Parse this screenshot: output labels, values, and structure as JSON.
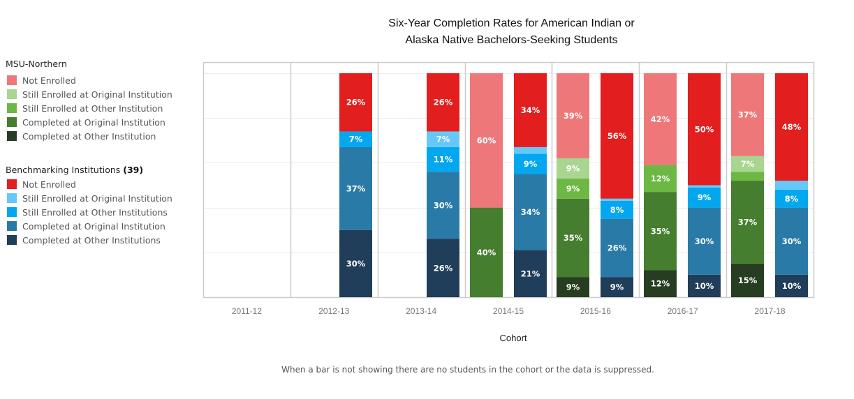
{
  "title_line1": "Six-Year Completion Rates for American Indian or",
  "title_line2": "Alaska Native Bachelors-Seeking Students",
  "legend_msu": {
    "title": "MSU-Northern",
    "items": [
      {
        "label": "Not Enrolled",
        "color": "#ee7879"
      },
      {
        "label": "Still Enrolled at Original Institution",
        "color": "#a8d590"
      },
      {
        "label": "Still Enrolled at Other Institution",
        "color": "#6db844"
      },
      {
        "label": "Completed at Original Institution",
        "color": "#457e2e"
      },
      {
        "label": "Completed at Other Institution",
        "color": "#273d22"
      }
    ]
  },
  "legend_bench": {
    "title": "Benchmarking Institutions",
    "count": "(39)",
    "items": [
      {
        "label": "Not Enrolled",
        "color": "#e21e1e"
      },
      {
        "label": "Still Enrolled at Original Institution",
        "color": "#66c8f8"
      },
      {
        "label": "Still Enrolled at Other Institutions",
        "color": "#03a7ef"
      },
      {
        "label": "Completed at Original Institution",
        "color": "#2a7aa7"
      },
      {
        "label": "Completed at Other Institutions",
        "color": "#203d5a"
      }
    ]
  },
  "xlabel": "Cohort",
  "footnote": "When a bar is not showing there are no students in the cohort or the data is suppressed.",
  "chart_data": {
    "type": "bar",
    "stacked": true,
    "title": "Six-Year Completion Rates for American Indian or Alaska Native Bachelors-Seeking Students",
    "xlabel": "Cohort",
    "ylabel": "",
    "ylim": [
      0,
      100
    ],
    "grid": true,
    "legend_position": "left",
    "categories": [
      "2011-12",
      "2012-13",
      "2013-14",
      "2014-15",
      "2015-16",
      "2016-17",
      "2017-18"
    ],
    "stack_order_bottom_to_top": [
      "Completed at Other",
      "Completed at Original",
      "Still Enrolled at Other",
      "Still Enrolled at Original",
      "Not Enrolled"
    ],
    "groups": [
      {
        "name": "MSU-Northern",
        "series": [
          {
            "name": "Completed at Other Institution",
            "color": "#273d22",
            "values": [
              null,
              null,
              null,
              0,
              9,
              12,
              15
            ]
          },
          {
            "name": "Completed at Original Institution",
            "color": "#457e2e",
            "values": [
              null,
              null,
              null,
              40,
              35,
              35,
              37
            ]
          },
          {
            "name": "Still Enrolled at Other Institution",
            "color": "#6db844",
            "values": [
              null,
              null,
              null,
              0,
              9,
              12,
              4
            ]
          },
          {
            "name": "Still Enrolled at Original Institution",
            "color": "#a8d590",
            "values": [
              null,
              null,
              null,
              0,
              9,
              0,
              7
            ]
          },
          {
            "name": "Not Enrolled",
            "color": "#ee7879",
            "values": [
              null,
              null,
              null,
              60,
              39,
              42,
              37
            ]
          }
        ],
        "labels": [
          [
            null,
            null,
            null,
            null,
            null
          ],
          [
            null,
            null,
            null,
            null,
            null
          ],
          [
            null,
            null,
            null,
            null,
            null
          ],
          [
            "",
            "40%",
            "",
            "",
            "60%"
          ],
          [
            "9%",
            "35%",
            "9%",
            "9%",
            "39%"
          ],
          [
            "12%",
            "35%",
            "12%",
            "",
            "42%"
          ],
          [
            "15%",
            "37%",
            "",
            "7%",
            "37%"
          ]
        ]
      },
      {
        "name": "Benchmarking Institutions",
        "series": [
          {
            "name": "Completed at Other Institutions",
            "color": "#203d5a",
            "values": [
              null,
              30,
              26,
              21,
              9,
              10,
              10
            ]
          },
          {
            "name": "Completed at Original Institution",
            "color": "#2a7aa7",
            "values": [
              null,
              37,
              30,
              34,
              26,
              30,
              30
            ]
          },
          {
            "name": "Still Enrolled at Other Institutions",
            "color": "#03a7ef",
            "values": [
              null,
              7,
              11,
              9,
              8,
              9,
              8
            ]
          },
          {
            "name": "Still Enrolled at Original Institution",
            "color": "#66c8f8",
            "values": [
              null,
              0,
              7,
              3,
              1,
              1,
              4
            ]
          },
          {
            "name": "Not Enrolled",
            "color": "#e21e1e",
            "values": [
              null,
              26,
              26,
              34,
              56,
              50,
              48
            ]
          }
        ],
        "labels": [
          [
            null,
            null,
            null,
            null,
            null
          ],
          [
            "30%",
            "37%",
            "7%",
            "",
            "26%"
          ],
          [
            "26%",
            "30%",
            "11%",
            "7%",
            "26%"
          ],
          [
            "21%",
            "34%",
            "9%",
            "",
            "34%"
          ],
          [
            "9%",
            "26%",
            "8%",
            "",
            "56%"
          ],
          [
            "10%",
            "30%",
            "9%",
            "",
            "50%"
          ],
          [
            "10%",
            "30%",
            "8%",
            "",
            "48%"
          ]
        ]
      }
    ]
  }
}
